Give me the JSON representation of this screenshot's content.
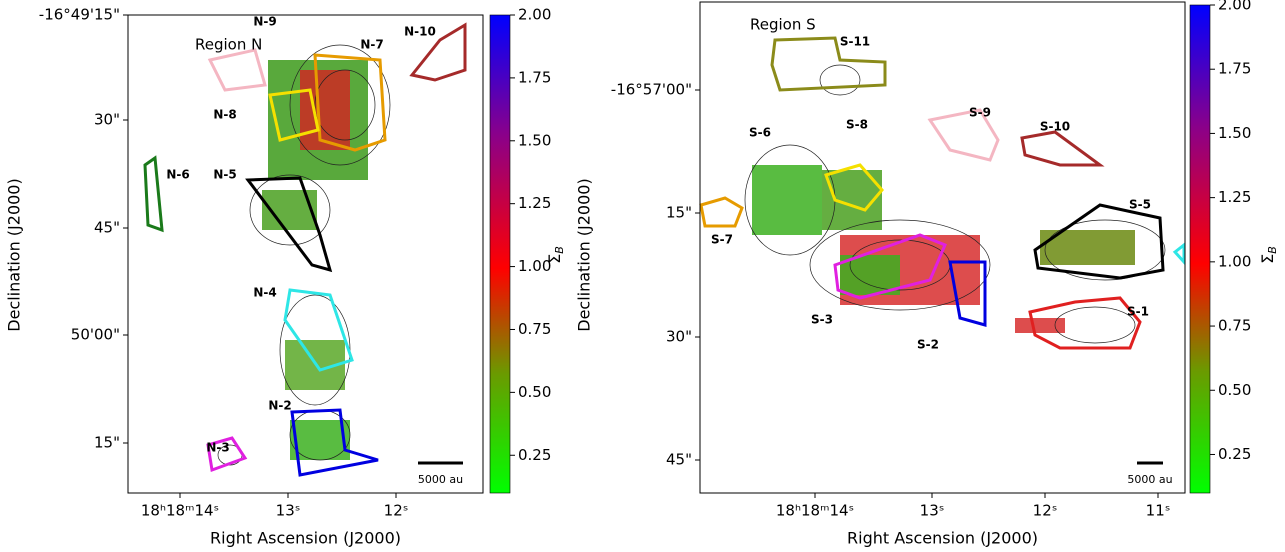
{
  "panels": [
    {
      "region_label": "Region N",
      "xlabel": "Right Ascension (J2000)",
      "ylabel": "Declination (J2000)",
      "xticks": [
        "18ʰ18ᵐ14ˢ",
        "13ˢ",
        "12ˢ"
      ],
      "yticks": [
        "-16°49'15\"",
        "30\"",
        "45\"",
        "50'00\"",
        "15\""
      ],
      "sources": [
        "N-9",
        "N-7",
        "N-10",
        "N-8",
        "N-6",
        "N-5",
        "N-4",
        "N-3",
        "N-2"
      ],
      "scalebar": "5000 au",
      "colorbar": {
        "symbol": "Σ",
        "subscript": "B",
        "lim": [
          0.1,
          2.0
        ],
        "ticks": [
          0.25,
          {
            "value": 0.5,
            "label": "0.50"
          },
          0.75,
          {
            "value": 1,
            "label": "1.00"
          },
          1.25,
          {
            "value": 1.5,
            "label": "1.50"
          },
          1.75,
          {
            "value": 2,
            "label": "2.00"
          }
        ]
      }
    },
    {
      "region_label": "Region S",
      "xlabel": "Right Ascension (J2000)",
      "ylabel": "Declination (J2000)",
      "xticks": [
        "18ʰ18ᵐ14ˢ",
        "13ˢ",
        "12ˢ",
        "11ˢ"
      ],
      "yticks": [
        "-16°57'00\"",
        "15\"",
        "30\"",
        "45\""
      ],
      "sources": [
        "S-11",
        "S-9",
        "S-10",
        "S-6",
        "S-8",
        "S-5",
        "S-7",
        "S-3",
        "S-2",
        "S-1"
      ],
      "scalebar": "5000 au",
      "colorbar": {
        "symbol": "Σ",
        "subscript": "B",
        "lim": [
          0.1,
          2.0
        ],
        "ticks": [
          0.25,
          {
            "value": 0.5,
            "label": "0.50"
          },
          0.75,
          {
            "value": 1,
            "label": "1.00"
          },
          1.25,
          {
            "value": 1.5,
            "label": "1.50"
          },
          1.75,
          {
            "value": 2,
            "label": "2.00"
          }
        ]
      }
    }
  ]
}
